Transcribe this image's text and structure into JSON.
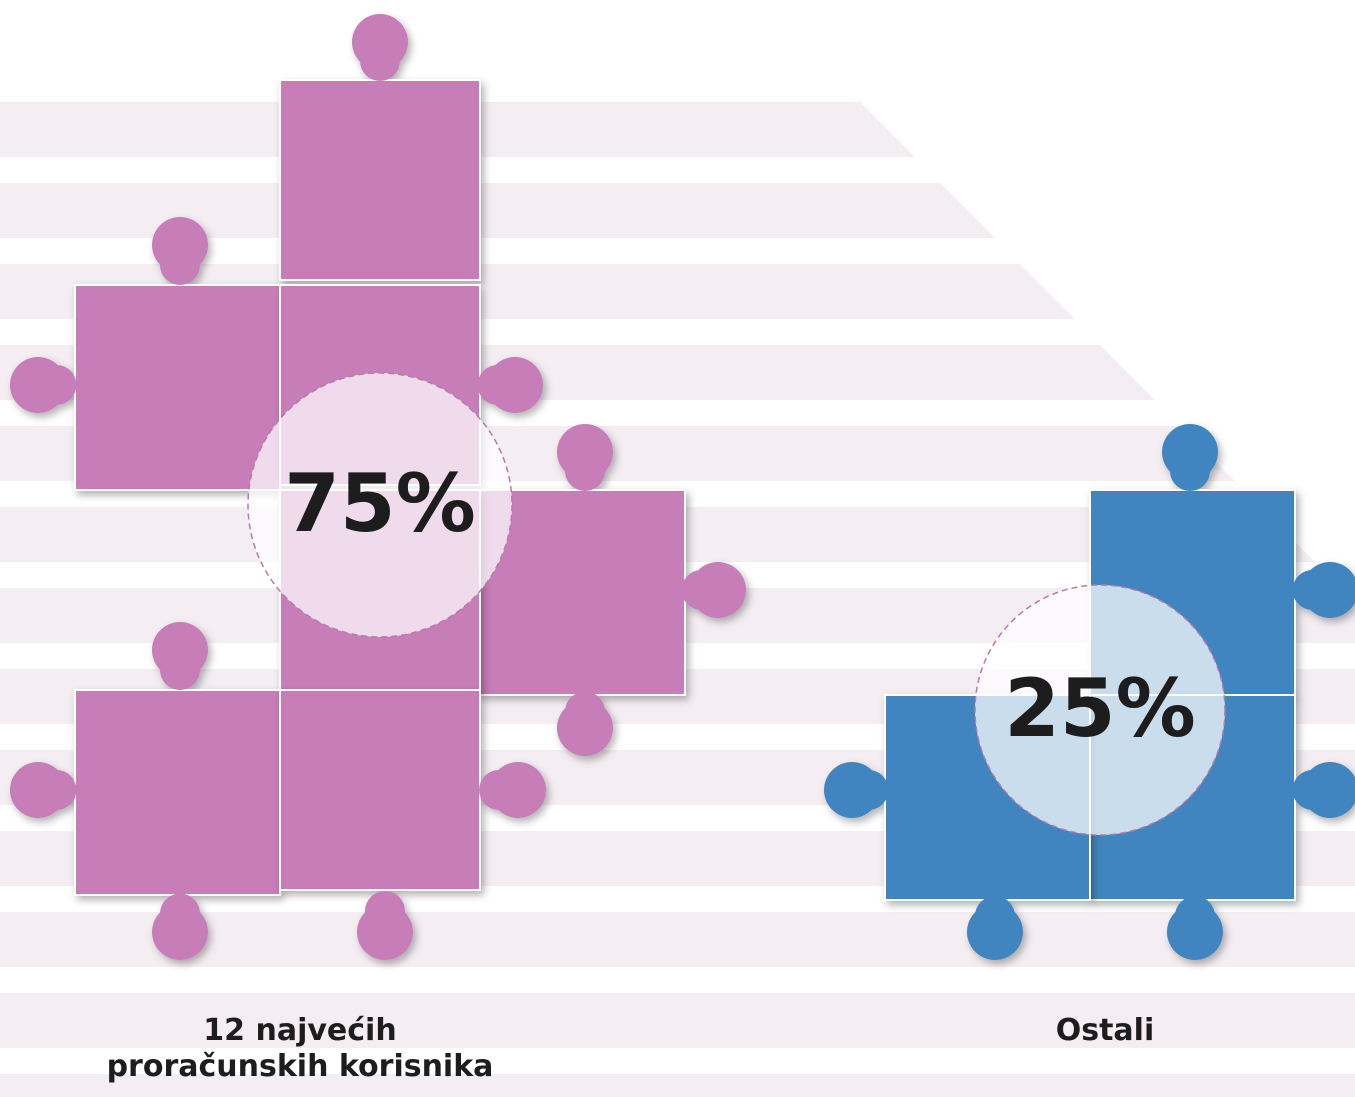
{
  "chart_data": {
    "type": "puzzle",
    "categories": [
      "12 najvećih proračunskih korisnika",
      "Ostali"
    ],
    "values": [
      75,
      25
    ],
    "value_labels": [
      "75%",
      "25%"
    ],
    "colors": [
      "#c77db8",
      "#3f85bf"
    ]
  }
}
